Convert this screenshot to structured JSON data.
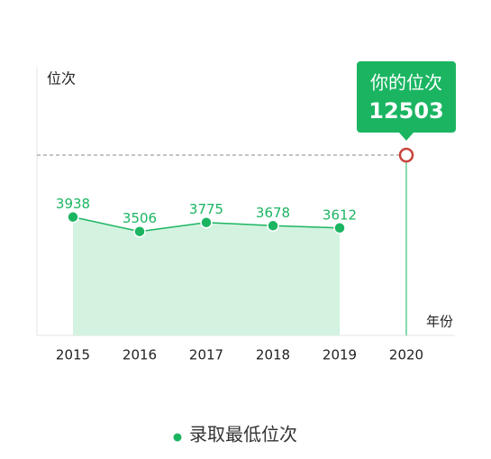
{
  "chart_data": {
    "type": "area_line",
    "y_label": "位次",
    "x_label": "年份",
    "categories": [
      "2015",
      "2016",
      "2017",
      "2018",
      "2019",
      "2020"
    ],
    "series": [
      {
        "name": "录取最低位次",
        "color": "#1bb562",
        "values": [
          3938,
          3506,
          3775,
          3678,
          3612,
          null
        ]
      }
    ],
    "ylim": [
      400,
      8400
    ],
    "annotation": {
      "title": "你的位次",
      "value": 12503
    }
  }
}
